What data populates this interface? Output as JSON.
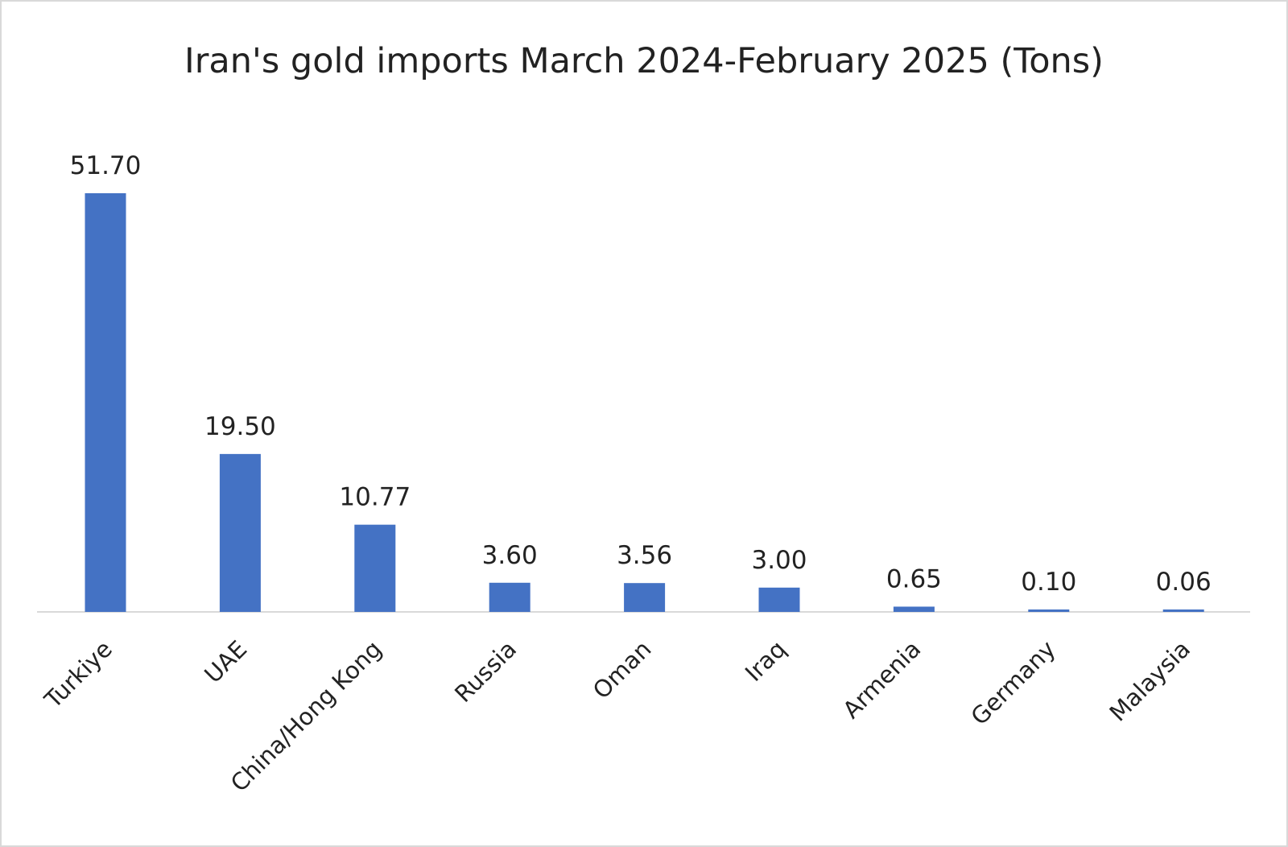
{
  "chart_data": {
    "type": "bar",
    "title": "Iran's gold imports March 2024-February 2025 (Tons)",
    "xlabel": "",
    "ylabel": "",
    "categories": [
      "Turkiye",
      "UAE",
      "China/Hong Kong",
      "Russia",
      "Oman",
      "Iraq",
      "Armenia",
      "Germany",
      "Malaysia"
    ],
    "values": [
      51.7,
      19.5,
      10.77,
      3.6,
      3.56,
      3.0,
      0.65,
      0.1,
      0.06
    ],
    "data_labels": [
      "51.70",
      "19.50",
      "10.77",
      "3.60",
      "3.56",
      "3.00",
      "0.65",
      "0.10",
      "0.06"
    ],
    "ylim": [
      0,
      55
    ],
    "grid": false,
    "y_axis_visible": false,
    "bar_color": "#4472C4",
    "axis_color": "#d9d9d9"
  }
}
